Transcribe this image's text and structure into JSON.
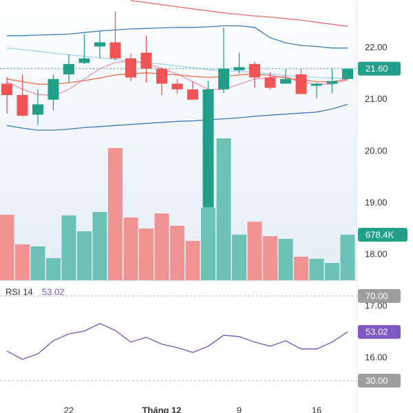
{
  "chart_data": {
    "type": "candlestick",
    "categories": [
      null,
      null,
      null,
      null,
      "22",
      null,
      null,
      null,
      null,
      null,
      "Tháng 12",
      null,
      null,
      null,
      null,
      "9",
      null,
      null,
      null,
      null,
      "16",
      null,
      null
    ],
    "open": [
      21.31,
      21.09,
      20.71,
      21.0,
      21.49,
      21.71,
      22.03,
      22.11,
      21.8,
      21.91,
      21.6,
      21.31,
      21.2,
      18.91,
      21.2,
      21.57,
      21.69,
      21.43,
      21.31,
      21.49,
      21.27,
      21.31,
      21.4
    ],
    "high": [
      21.44,
      21.49,
      21.2,
      21.49,
      21.87,
      22.27,
      22.33,
      22.71,
      21.89,
      22.24,
      21.63,
      21.4,
      21.36,
      21.36,
      22.4,
      21.91,
      21.73,
      21.53,
      21.6,
      21.6,
      21.33,
      21.6,
      21.6
    ],
    "low": [
      20.73,
      20.67,
      20.51,
      20.8,
      21.33,
      21.69,
      21.8,
      21.76,
      21.36,
      21.33,
      21.09,
      21.11,
      21.0,
      18.91,
      21.13,
      21.51,
      21.23,
      21.2,
      21.31,
      21.11,
      21.03,
      21.13,
      21.4
    ],
    "close": [
      21.09,
      20.69,
      20.91,
      21.4,
      21.69,
      21.8,
      22.11,
      21.8,
      21.43,
      21.6,
      21.31,
      21.2,
      21.0,
      21.2,
      21.6,
      21.63,
      21.43,
      21.23,
      21.4,
      21.11,
      21.31,
      21.36,
      21.6
    ],
    "close_label": "21.60",
    "up_color": "#22a08a",
    "down_color": "#f05454",
    "ylim": [
      15.2,
      22.93
    ],
    "yticks": [
      {
        "value": 16,
        "label": "16.00"
      },
      {
        "value": 17,
        "label": "17.00"
      },
      {
        "value": 18,
        "label": "18.00"
      },
      {
        "value": 19,
        "label": "19.00"
      },
      {
        "value": 20,
        "label": "20.00"
      },
      {
        "value": 21,
        "label": "21.00"
      },
      {
        "value": 22,
        "label": "22.00"
      }
    ],
    "lines": [
      {
        "color": "#3d7ab8",
        "values": [
          22.24,
          22.24,
          22.25,
          22.26,
          22.27,
          22.3,
          22.33,
          22.35,
          22.37,
          22.38,
          22.39,
          22.4,
          22.4,
          22.41,
          22.43,
          22.43,
          22.4,
          22.2,
          22.1,
          22.05,
          22.03,
          22.0,
          22.0
        ]
      },
      {
        "color": "#3d7ab8",
        "values": [
          20.5,
          20.45,
          20.41,
          20.41,
          20.43,
          20.46,
          20.48,
          20.5,
          20.52,
          20.54,
          20.56,
          20.58,
          20.59,
          20.61,
          20.63,
          20.65,
          20.68,
          20.7,
          20.72,
          20.74,
          20.76,
          20.82,
          20.91
        ]
      },
      {
        "color": "#e57373",
        "values": [
          null,
          null,
          null,
          null,
          null,
          null,
          null,
          null,
          22.92,
          22.88,
          22.84,
          22.8,
          22.76,
          22.72,
          22.68,
          22.65,
          22.62,
          22.6,
          22.57,
          22.54,
          22.5,
          22.46,
          22.42
        ]
      },
      {
        "color": "#9fd3f0",
        "values": [
          22.0,
          21.97,
          21.94,
          21.9,
          21.87,
          21.84,
          21.81,
          21.78,
          21.75,
          21.72,
          21.69,
          21.65,
          21.62,
          21.58,
          21.56,
          21.55,
          21.53,
          21.5,
          21.47,
          21.45,
          21.43,
          21.42,
          21.42
        ]
      },
      {
        "color": "#f48fb1",
        "values": [
          21.35,
          21.2,
          21.1,
          21.08,
          21.2,
          21.4,
          21.6,
          21.72,
          21.75,
          21.7,
          21.6,
          21.5,
          21.35,
          21.2,
          21.2,
          21.3,
          21.4,
          21.43,
          21.45,
          21.33,
          21.3,
          21.3,
          21.38
        ]
      },
      {
        "color": "#ef6c4a",
        "values": [
          21.4,
          21.35,
          21.3,
          21.3,
          21.33,
          21.37,
          21.42,
          21.48,
          21.5,
          21.52,
          21.5,
          21.48,
          21.45,
          21.43,
          21.45,
          21.48,
          21.5,
          21.47,
          21.42,
          21.38,
          21.35,
          21.35,
          21.4
        ]
      }
    ],
    "volume": {
      "values": [
        977000,
        535000,
        504000,
        329000,
        967000,
        730000,
        1018000,
        1974000,
        936000,
        771000,
        997000,
        812000,
        586000,
        1080000,
        2118000,
        680000,
        874000,
        658000,
        617000,
        350000,
        319000,
        257000,
        678400
      ],
      "last_label": "678.4K",
      "ylim": [
        0,
        4000000
      ],
      "up_color": "#6cc2b5",
      "down_color": "#f29393"
    },
    "rsi": {
      "name": "RSI 14",
      "color": "#7e57c2",
      "values": [
        43.98,
        40.08,
        42.68,
        48.86,
        52.11,
        53.41,
        56.99,
        53.74,
        48.21,
        50.49,
        47.24,
        45.61,
        43.33,
        46.26,
        51.46,
        50.81,
        48.21,
        46.26,
        48.86,
        44.96,
        44.96,
        48.21,
        53.02
      ],
      "last_label": "53.02",
      "ylim": [
        21.2,
        77.5
      ],
      "yticks": [
        {
          "value": 70,
          "label": "70.00"
        },
        {
          "value": 30,
          "label": "30.00"
        }
      ]
    }
  }
}
